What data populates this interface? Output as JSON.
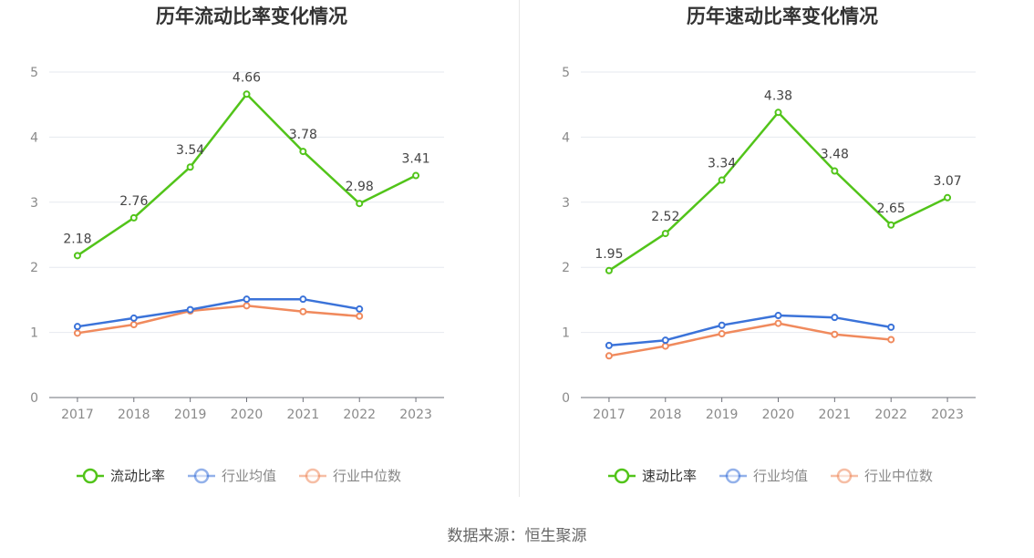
{
  "footer_text": "数据来源：恒生聚源",
  "chart_data": [
    {
      "type": "line",
      "title": "历年流动比率变化情况",
      "x": [
        "2017",
        "2018",
        "2019",
        "2020",
        "2021",
        "2022",
        "2023"
      ],
      "ylim": [
        0,
        5
      ],
      "yticks": [
        0,
        1,
        2,
        3,
        4,
        5
      ],
      "grid": true,
      "legend_position": "bottom",
      "series": [
        {
          "name": "流动比率",
          "color": "#52c41a",
          "values": [
            2.18,
            2.76,
            3.54,
            4.66,
            3.78,
            2.98,
            3.41
          ],
          "data_labels": [
            "2.18",
            "2.76",
            "3.54",
            "4.66",
            "3.78",
            "2.98",
            "3.41"
          ]
        },
        {
          "name": "行业均值",
          "color": "#3b73d9",
          "values": [
            1.09,
            1.22,
            1.35,
            1.51,
            1.51,
            1.36,
            null
          ]
        },
        {
          "name": "行业中位数",
          "color": "#f08a5d",
          "values": [
            0.99,
            1.12,
            1.33,
            1.41,
            1.32,
            1.25,
            null
          ]
        }
      ]
    },
    {
      "type": "line",
      "title": "历年速动比率变化情况",
      "x": [
        "2017",
        "2018",
        "2019",
        "2020",
        "2021",
        "2022",
        "2023"
      ],
      "ylim": [
        0,
        5
      ],
      "yticks": [
        0,
        1,
        2,
        3,
        4,
        5
      ],
      "grid": true,
      "legend_position": "bottom",
      "series": [
        {
          "name": "速动比率",
          "color": "#52c41a",
          "values": [
            1.95,
            2.52,
            3.34,
            4.38,
            3.48,
            2.65,
            3.07
          ],
          "data_labels": [
            "1.95",
            "2.52",
            "3.34",
            "4.38",
            "3.48",
            "2.65",
            "3.07"
          ]
        },
        {
          "name": "行业均值",
          "color": "#3b73d9",
          "values": [
            0.8,
            0.88,
            1.11,
            1.26,
            1.23,
            1.08,
            null
          ]
        },
        {
          "name": "行业中位数",
          "color": "#f08a5d",
          "values": [
            0.64,
            0.79,
            0.98,
            1.14,
            0.97,
            0.89,
            null
          ]
        }
      ]
    }
  ]
}
